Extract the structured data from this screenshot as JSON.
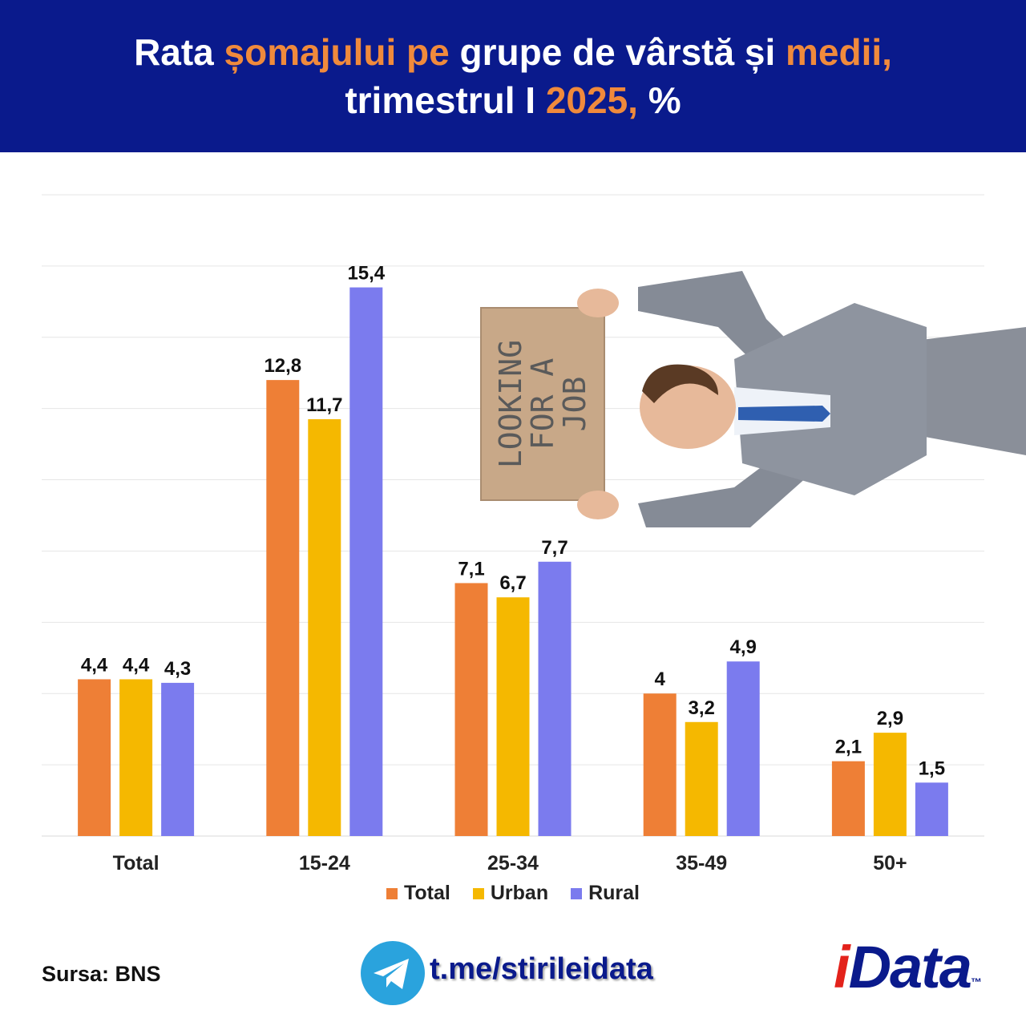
{
  "header": {
    "title_line1": [
      {
        "text": "Rata ",
        "hl": false
      },
      {
        "text": "șomajului pe ",
        "hl": true
      },
      {
        "text": "grupe de vârstă și ",
        "hl": false
      },
      {
        "text": "medii,",
        "hl": true
      }
    ],
    "title_line2": [
      {
        "text": "trimestrul I ",
        "hl": false
      },
      {
        "text": "2025, ",
        "hl": true
      },
      {
        "text": "%",
        "hl": false
      }
    ]
  },
  "colors": {
    "header_bg": "#0a1a8c",
    "highlight": "#f08a3c",
    "total": "#ee7f36",
    "urban": "#f5b800",
    "rural": "#7b7bee"
  },
  "chart_data": {
    "type": "bar",
    "categories": [
      "Total",
      "15-24",
      "25-34",
      "35-49",
      "50+"
    ],
    "series": [
      {
        "name": "Total",
        "values": [
          4.4,
          12.8,
          7.1,
          4.0,
          2.1
        ],
        "labels": [
          "4,4",
          "12,8",
          "7,1",
          "4",
          "2,1"
        ]
      },
      {
        "name": "Urban",
        "values": [
          4.4,
          11.7,
          6.7,
          3.2,
          2.9
        ],
        "labels": [
          "4,4",
          "11,7",
          "6,7",
          "3,2",
          "2,9"
        ]
      },
      {
        "name": "Rural",
        "values": [
          4.3,
          15.4,
          7.7,
          4.9,
          1.5
        ],
        "labels": [
          "4,3",
          "15,4",
          "7,7",
          "4,9",
          "1,5"
        ]
      }
    ],
    "ylim": [
      0,
      18
    ],
    "grid": true,
    "legend_position": "bottom"
  },
  "illustration": {
    "sign_lines": [
      "LOOKING",
      "FOR A",
      "JOB"
    ]
  },
  "footer": {
    "source": "Sursa: BNS",
    "telegram_icon": "telegram-icon",
    "telegram_link": "t.me/stirileidata",
    "brand_i": "i",
    "brand_rest": "Data",
    "brand_tm": "™"
  }
}
